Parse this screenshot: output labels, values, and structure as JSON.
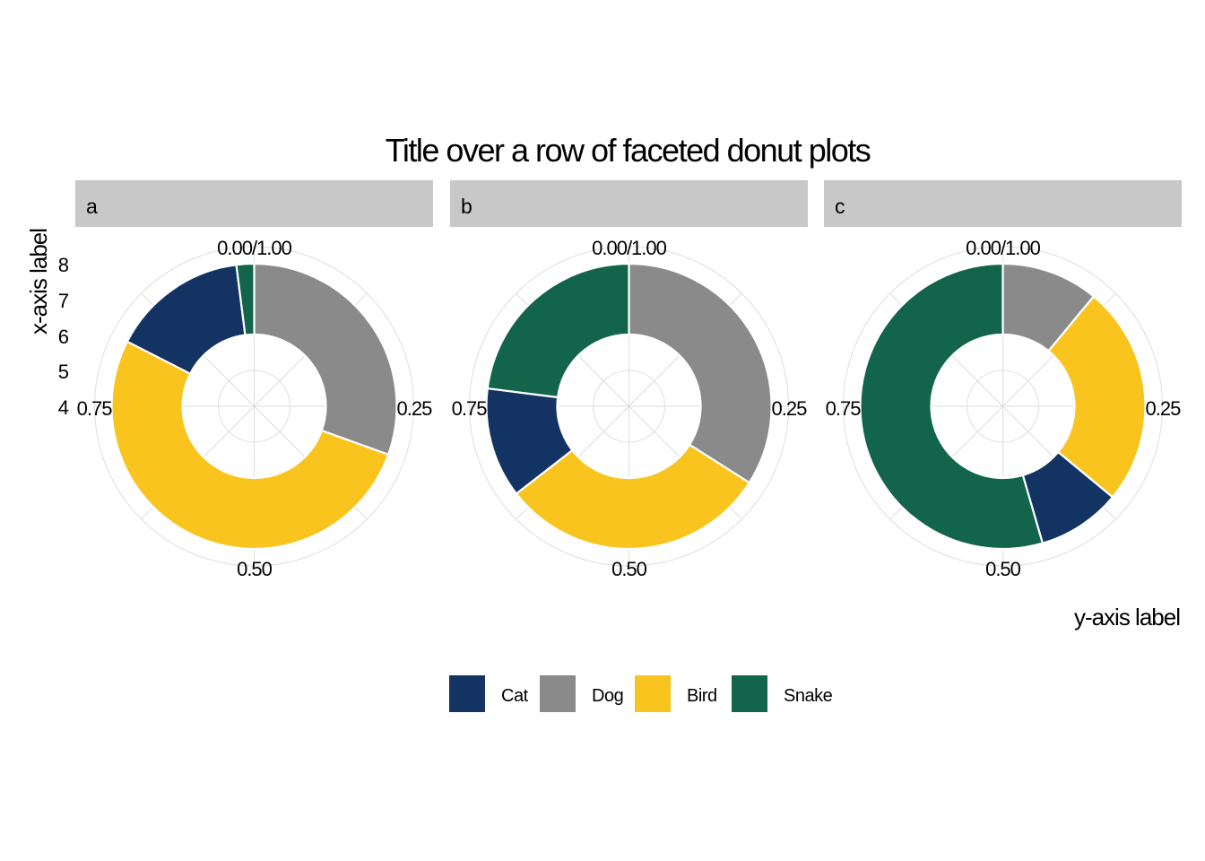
{
  "chart_data": {
    "type": "pie",
    "subtype": "donut",
    "title": "Title over a row of faceted donut plots",
    "xlabel": "x-axis label",
    "ylabel": "y-axis label",
    "angle_ticks": [
      "0.00/1.00",
      "0.25",
      "0.50",
      "0.75"
    ],
    "radial_ticks": [
      "4",
      "5",
      "6",
      "7",
      "8"
    ],
    "radial_range": [
      4,
      8
    ],
    "categories": [
      "Cat",
      "Dog",
      "Bird",
      "Snake"
    ],
    "colors": {
      "Cat": "#133463",
      "Dog": "#8a8a8a",
      "Bird": "#f9c41e",
      "Snake": "#12644a"
    },
    "facets": [
      {
        "label": "a",
        "values": {
          "Dog": 0.305,
          "Bird": 0.52,
          "Cat": 0.155,
          "Snake": 0.02
        }
      },
      {
        "label": "b",
        "values": {
          "Dog": 0.34,
          "Bird": 0.305,
          "Cat": 0.125,
          "Snake": 0.23
        }
      },
      {
        "label": "c",
        "values": {
          "Dog": 0.11,
          "Bird": 0.25,
          "Cat": 0.095,
          "Snake": 0.545
        }
      }
    ],
    "legend": {
      "position": "bottom",
      "entries": [
        "Cat",
        "Dog",
        "Bird",
        "Snake"
      ]
    },
    "grid": true,
    "strip_color": "#c8c8c8",
    "grid_color": "#dedede"
  }
}
